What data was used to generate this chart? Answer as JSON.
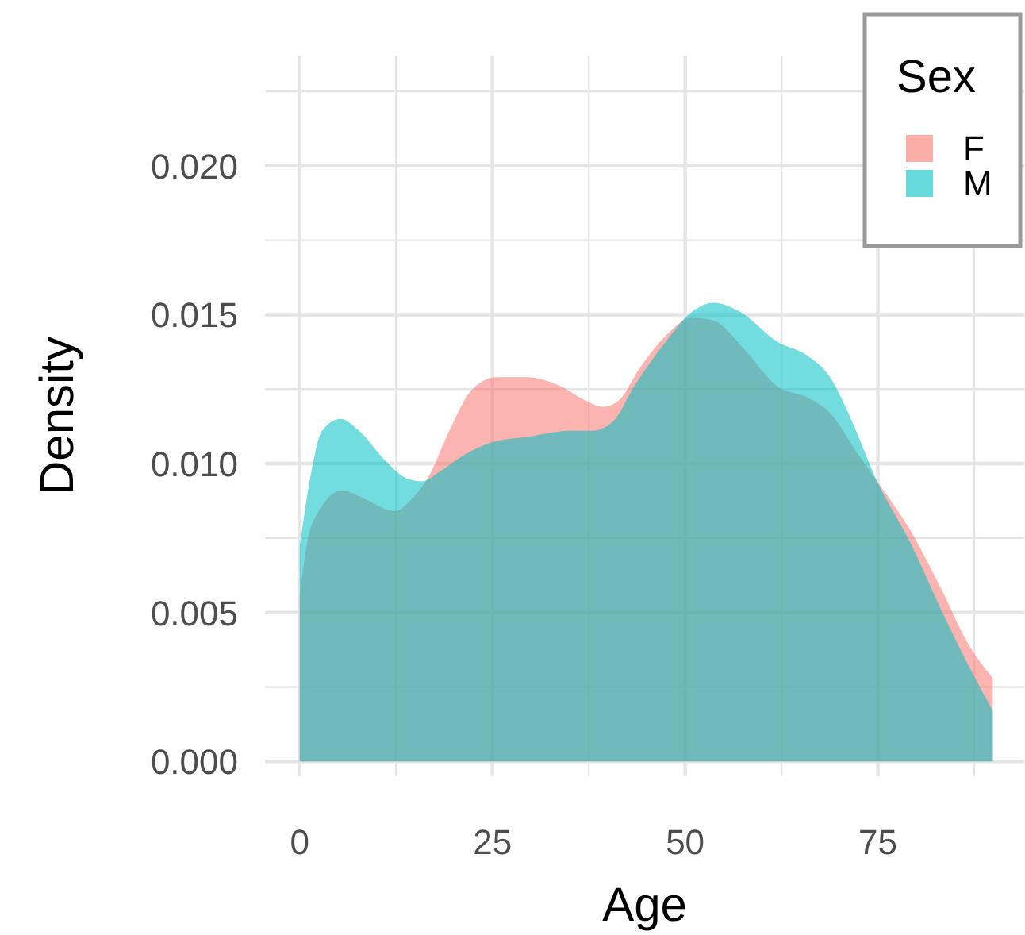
{
  "chart_data": {
    "type": "area",
    "xlabel": "Age",
    "ylabel": "Density",
    "legend_title": "Sex",
    "legend": "top right",
    "grid": true,
    "xlim": [
      -4.5,
      94
    ],
    "ylim": [
      -0.0005,
      0.0237
    ],
    "xticks": [
      0,
      {
        "value": 12.5,
        "label": null
      },
      25,
      {
        "value": 37.5,
        "label": null
      },
      50,
      {
        "value": 62.5,
        "label": null
      },
      75,
      {
        "value": 87.5,
        "label": null
      }
    ],
    "yticks": [
      {
        "value": 0,
        "label": "0.000"
      },
      {
        "value": 0.0025,
        "label": null
      },
      {
        "value": 0.005,
        "label": "0.005"
      },
      {
        "value": 0.0075,
        "label": null
      },
      {
        "value": 0.01,
        "label": "0.010"
      },
      {
        "value": 0.0125,
        "label": null
      },
      {
        "value": 0.015,
        "label": "0.015"
      },
      {
        "value": 0.0175,
        "label": null
      },
      {
        "value": 0.02,
        "label": "0.020"
      },
      {
        "value": 0.0225,
        "label": null
      }
    ],
    "series": [
      {
        "name": "F",
        "color": "#f8766d",
        "x": [
          0,
          1.5,
          5.6,
          7.7,
          12.4,
          14.5,
          16.6,
          19.4,
          22.1,
          25.5,
          29.6,
          33.8,
          37.2,
          39.3,
          41.3,
          44.1,
          47.5,
          50.9,
          53.7,
          57.8,
          61.9,
          66,
          68.8,
          72.2,
          74.9,
          79.1,
          83.2,
          86.6,
          89.9
        ],
        "values": [
          0.0055,
          0.0079,
          0.0091,
          0.0089,
          0.0084,
          0.0088,
          0.0095,
          0.0111,
          0.0124,
          0.0129,
          0.0129,
          0.0126,
          0.0121,
          0.0119,
          0.0121,
          0.0132,
          0.0143,
          0.0149,
          0.0148,
          0.0138,
          0.0126,
          0.0122,
          0.0117,
          0.0104,
          0.0094,
          0.0078,
          0.0058,
          0.004,
          0.0028
        ]
      },
      {
        "name": "M",
        "color": "#00bfc4",
        "x": [
          0,
          1.5,
          2.9,
          5.3,
          7.7,
          11.1,
          13.9,
          15.9,
          18,
          21.4,
          24.8,
          29.6,
          35.1,
          37.9,
          40.6,
          43.4,
          47.5,
          50.9,
          53.7,
          57.1,
          61.9,
          66,
          68.8,
          71.5,
          74.9,
          79.1,
          83.2,
          86.6,
          89.9
        ],
        "values": [
          0.0072,
          0.0097,
          0.0111,
          0.0115,
          0.0111,
          0.0101,
          0.0095,
          0.0094,
          0.0097,
          0.0103,
          0.0107,
          0.0109,
          0.0111,
          0.0111,
          0.0114,
          0.0126,
          0.0141,
          0.0151,
          0.0154,
          0.0151,
          0.0141,
          0.0136,
          0.0129,
          0.0115,
          0.0094,
          0.0074,
          0.0051,
          0.0033,
          0.0017
        ]
      }
    ]
  }
}
